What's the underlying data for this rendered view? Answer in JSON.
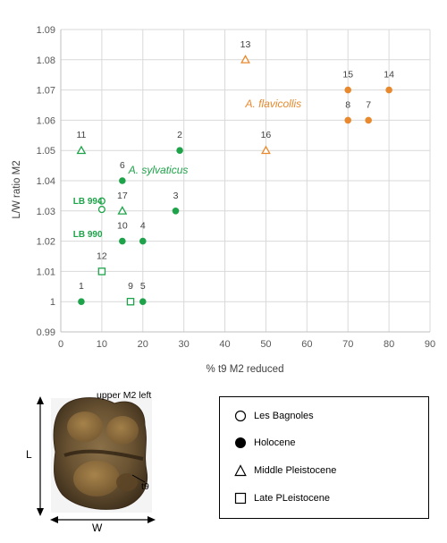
{
  "chart_data": {
    "type": "scatter",
    "xlabel": "% t9 M2 reduced",
    "ylabel": "L/W ratio M2",
    "xlim": [
      0,
      90
    ],
    "ylim": [
      0.99,
      1.09
    ],
    "xticks": [
      "0",
      "10",
      "20",
      "30",
      "40",
      "50",
      "60",
      "70",
      "80",
      "90"
    ],
    "yticks": [
      "0.99",
      "1",
      "1.01",
      "1.02",
      "1.03",
      "1.04",
      "1.05",
      "1.06",
      "1.07",
      "1.08",
      "1.09"
    ],
    "grid": true,
    "colors": {
      "sylvaticus": "#1fa34a",
      "flavicollis": "#e8892e"
    },
    "points": [
      {
        "label": "1",
        "x": 5,
        "y": 1.0,
        "marker": "circle-filled",
        "group": "sylvaticus"
      },
      {
        "label": "2",
        "x": 29,
        "y": 1.05,
        "marker": "circle-filled",
        "group": "sylvaticus"
      },
      {
        "label": "3",
        "x": 28,
        "y": 1.03,
        "marker": "circle-filled",
        "group": "sylvaticus"
      },
      {
        "label": "4",
        "x": 20,
        "y": 1.02,
        "marker": "circle-filled",
        "group": "sylvaticus"
      },
      {
        "label": "5",
        "x": 20,
        "y": 1.0,
        "marker": "circle-filled",
        "group": "sylvaticus"
      },
      {
        "label": "6",
        "x": 15,
        "y": 1.04,
        "marker": "circle-filled",
        "group": "sylvaticus"
      },
      {
        "label": "7",
        "x": 75,
        "y": 1.06,
        "marker": "circle-filled",
        "group": "flavicollis"
      },
      {
        "label": "8",
        "x": 70,
        "y": 1.06,
        "marker": "circle-filled",
        "group": "flavicollis"
      },
      {
        "label": "9",
        "x": 17,
        "y": 1.0,
        "marker": "square-open",
        "group": "sylvaticus"
      },
      {
        "label": "10",
        "x": 15,
        "y": 1.02,
        "marker": "circle-filled",
        "group": "sylvaticus"
      },
      {
        "label": "11",
        "x": 5,
        "y": 1.05,
        "marker": "triangle-open",
        "group": "sylvaticus"
      },
      {
        "label": "12",
        "x": 10,
        "y": 1.01,
        "marker": "square-open",
        "group": "sylvaticus"
      },
      {
        "label": "13",
        "x": 45,
        "y": 1.08,
        "marker": "triangle-open",
        "group": "flavicollis"
      },
      {
        "label": "14",
        "x": 80,
        "y": 1.07,
        "marker": "circle-filled",
        "group": "flavicollis"
      },
      {
        "label": "15",
        "x": 70,
        "y": 1.07,
        "marker": "circle-filled",
        "group": "flavicollis"
      },
      {
        "label": "16",
        "x": 50,
        "y": 1.05,
        "marker": "triangle-open",
        "group": "flavicollis"
      },
      {
        "label": "17",
        "x": 15,
        "y": 1.03,
        "marker": "triangle-open",
        "group": "sylvaticus"
      },
      {
        "label": "",
        "x": 10,
        "y": 1.0333,
        "marker": "circle-open",
        "group": "sylvaticus"
      },
      {
        "label": "",
        "x": 10,
        "y": 1.0305,
        "marker": "circle-open",
        "group": "sylvaticus"
      }
    ],
    "annotations": [
      {
        "text": "A. flavicollis",
        "x": 45,
        "y": 1.0655,
        "group": "flavicollis",
        "style": "species"
      },
      {
        "text": "A. sylvaticus",
        "x": 16.5,
        "y": 1.0435,
        "group": "sylvaticus",
        "style": "species"
      },
      {
        "text": "LB 994",
        "x": 3,
        "y": 1.0335,
        "group": "sylvaticus",
        "style": "site"
      },
      {
        "text": "LB 990",
        "x": 3,
        "y": 1.0225,
        "group": "sylvaticus",
        "style": "site"
      }
    ]
  },
  "tooth": {
    "caption": "upper M2 left",
    "length_label": "L",
    "width_label": "W",
    "cusp_label": "t9"
  },
  "legend": [
    {
      "marker": "circle-open",
      "label": "Les Bagnoles"
    },
    {
      "marker": "circle-filled",
      "label": "Holocene"
    },
    {
      "marker": "triangle-open",
      "label": "Middle Pleistocene"
    },
    {
      "marker": "square-open",
      "label": "Late PLeistocene"
    }
  ]
}
